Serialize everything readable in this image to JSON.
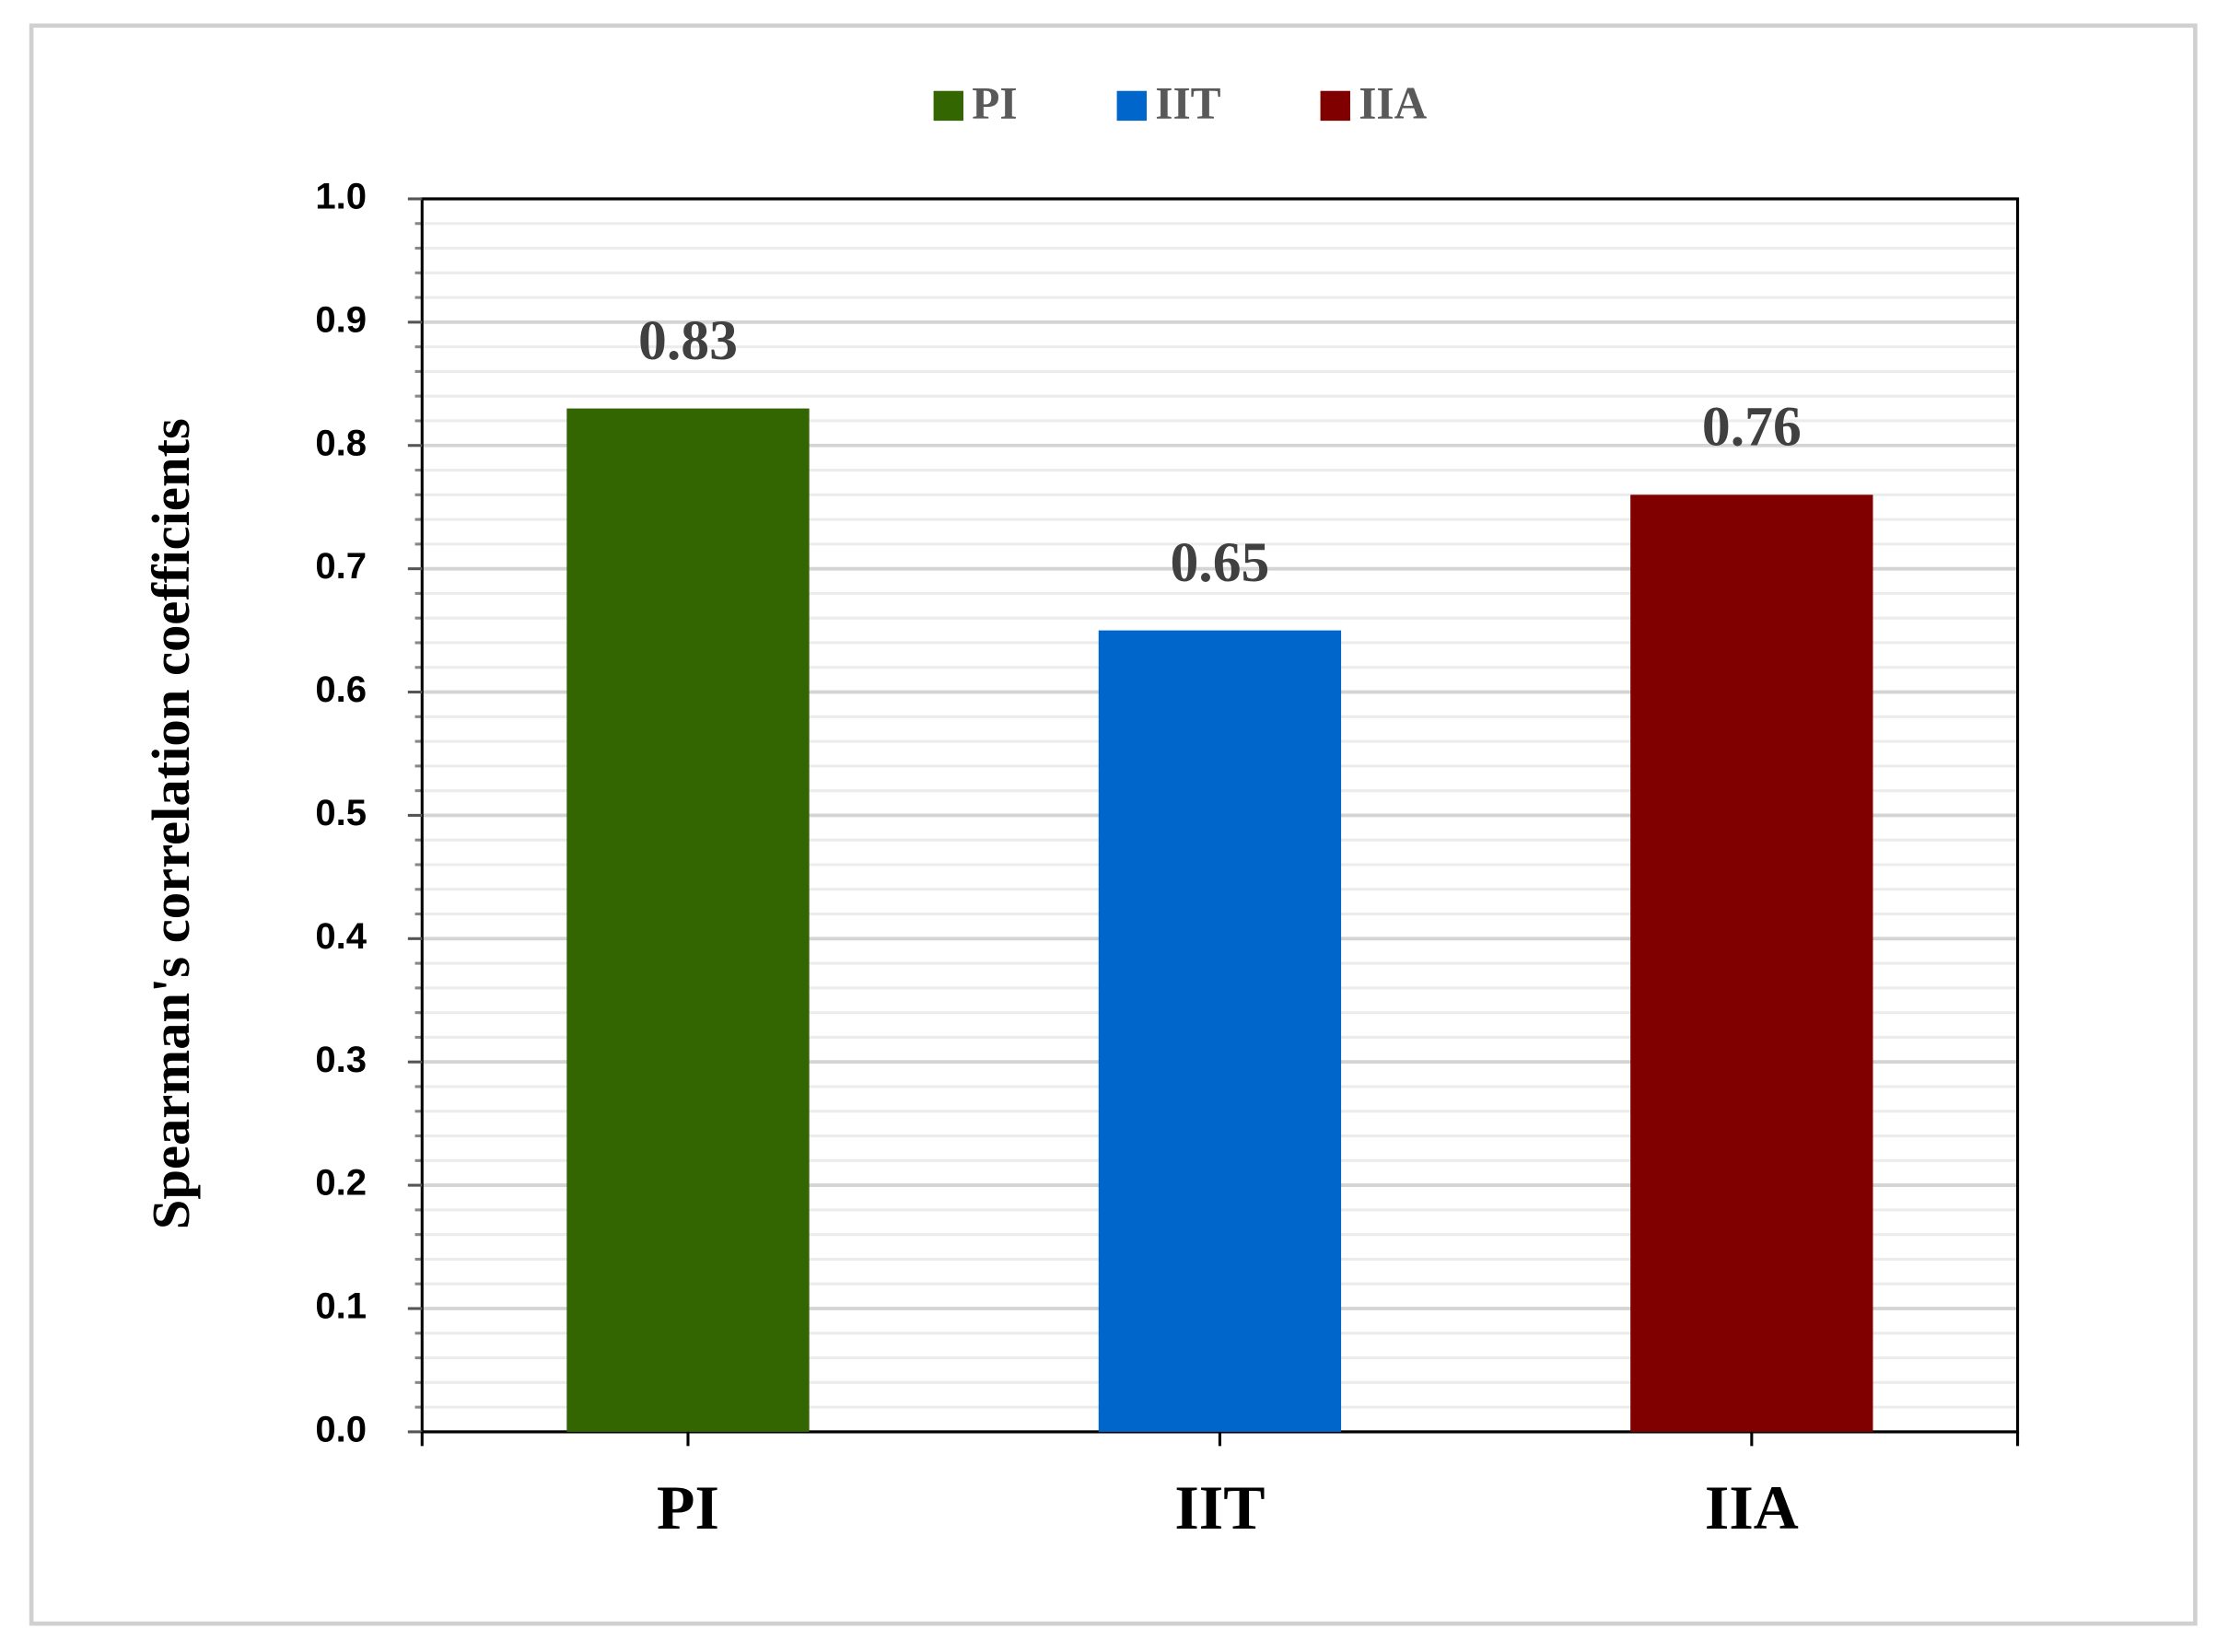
{
  "chart_data": {
    "type": "bar",
    "y_axis_label": "Spearman's  correlation  coefficients",
    "categories": [
      "PI",
      "IIT",
      "IIA"
    ],
    "values": [
      0.83,
      0.65,
      0.76
    ],
    "colors": [
      "#336600",
      "#0066cc",
      "#800000"
    ],
    "ylim": [
      0,
      1
    ],
    "yticks": [
      {
        "value": 0,
        "label": "0.0"
      },
      0.1,
      0.2,
      0.3,
      0.4,
      0.5,
      0.6,
      0.7,
      0.8,
      0.9,
      {
        "value": 1,
        "label": "1.0"
      }
    ],
    "grid": true,
    "minor_grid": true,
    "legend": "top"
  }
}
